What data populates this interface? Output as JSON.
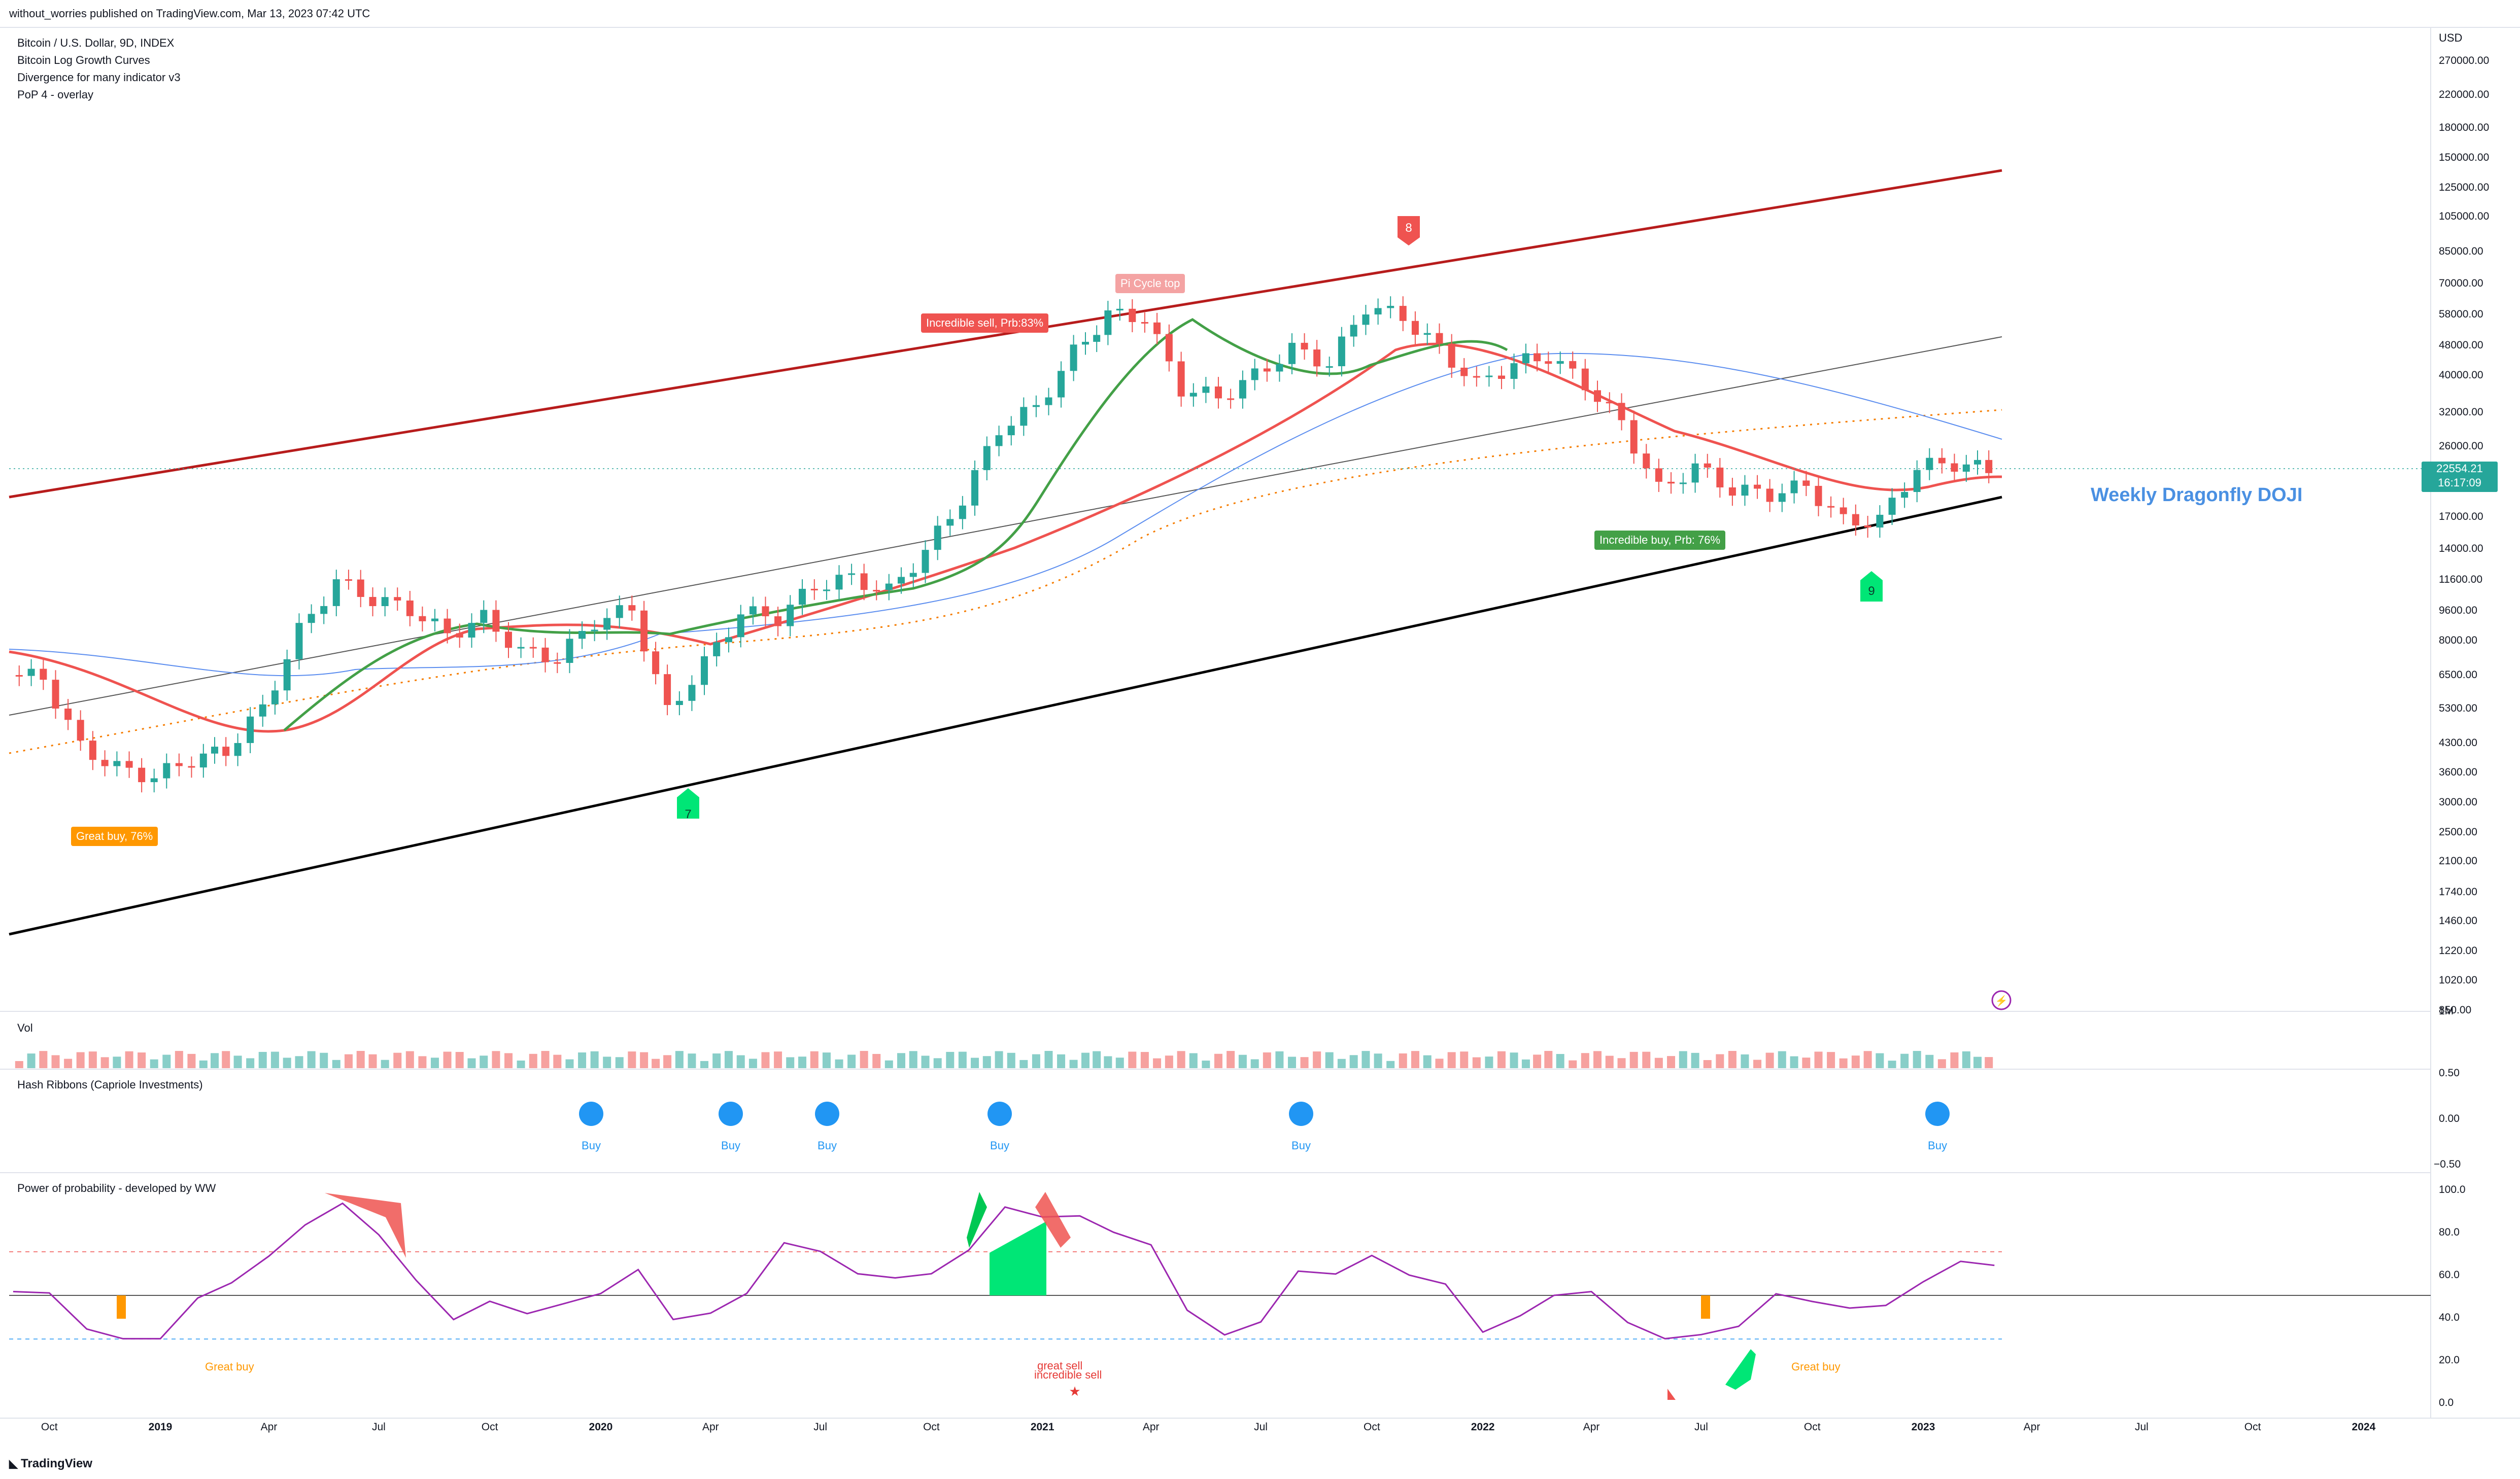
{
  "header": {
    "published": "without_worries published on TradingView.com, Mar 13, 2023 07:42 UTC"
  },
  "legend": {
    "lines": [
      "Bitcoin / U.S. Dollar, 9D, INDEX",
      "Bitcoin Log Growth Curves",
      "Divergence for many indicator v3",
      "PoP 4 - overlay"
    ]
  },
  "currency_label": "USD",
  "current_price": {
    "value": "22554.21",
    "countdown": "16:17:09"
  },
  "annotations": {
    "incredible_sell": "Incredible sell, Prb:83%",
    "pi_cycle_top": "Pi Cycle top",
    "great_buy": "Great buy, 76%",
    "incredible_buy": "Incredible buy, Prb: 76%",
    "dragonfly": "Weekly Dragonfly DOJI",
    "marker_8": "8",
    "marker_7": "7",
    "marker_9": "9"
  },
  "panes": {
    "vol": {
      "title": "Vol",
      "scale": "1M"
    },
    "hash": {
      "title": "Hash Ribbons (Capriole Investments)",
      "ticks": [
        "0.50",
        "0.00",
        "−0.50"
      ],
      "buy_label": "Buy"
    },
    "pop": {
      "title": "Power of probability - developed by WW",
      "ticks": [
        "100.0",
        "80.0",
        "60.0",
        "40.0",
        "20.0",
        "0.0"
      ],
      "great_buy": "Great buy",
      "great_sell": "great sell",
      "incredible_sell": "incredible sell"
    }
  },
  "footer": {
    "brand": "TradingView"
  },
  "colors": {
    "up": "#26a69a",
    "down": "#ef5350",
    "upper_band": "#b71c1c",
    "lower_band": "#000000",
    "ma_green": "#43a047",
    "ma_red": "#ef5350",
    "ma_blue": "#5b8def",
    "buy_dot": "#2196f3"
  },
  "chart_data": [
    {
      "type": "candlestick",
      "title": "Bitcoin / U.S. Dollar, 9D, INDEX",
      "y_scale": "log",
      "ylim": [
        850,
        330000
      ],
      "y_ticks": [
        "270000.00",
        "220000.00",
        "180000.00",
        "150000.00",
        "125000.00",
        "105000.00",
        "85000.00",
        "70000.00",
        "58000.00",
        "48000.00",
        "40000.00",
        "32000.00",
        "26000.00",
        "22000.00",
        "17000.00",
        "14000.00",
        "11600.00",
        "9600.00",
        "8000.00",
        "6500.00",
        "5300.00",
        "4300.00",
        "3600.00",
        "3000.00",
        "2500.00",
        "2100.00",
        "1740.00",
        "1460.00",
        "1220.00",
        "1020.00",
        "850.00"
      ],
      "x_ticks": [
        "Oct",
        "2019",
        "Apr",
        "Jul",
        "Oct",
        "2020",
        "Apr",
        "Jul",
        "Oct",
        "2021",
        "Apr",
        "Jul",
        "Oct",
        "2022",
        "Apr",
        "Jul",
        "Oct",
        "2023",
        "Apr",
        "Jul",
        "Oct",
        "2024"
      ],
      "x_ticks_bold": [
        "2019",
        "2020",
        "2021",
        "2022",
        "2023",
        "2024"
      ],
      "close_series": [
        [
          "2018-09-01",
          6500
        ],
        [
          "2018-10-01",
          6400
        ],
        [
          "2018-11-01",
          4200
        ],
        [
          "2018-12-01",
          3700
        ],
        [
          "2019-01-01",
          3500
        ],
        [
          "2019-02-01",
          3900
        ],
        [
          "2019-03-01",
          4100
        ],
        [
          "2019-04-01",
          5300
        ],
        [
          "2019-05-01",
          8500
        ],
        [
          "2019-06-01",
          11500
        ],
        [
          "2019-07-01",
          10300
        ],
        [
          "2019-08-01",
          9700
        ],
        [
          "2019-09-01",
          8300
        ],
        [
          "2019-10-01",
          9200
        ],
        [
          "2019-11-01",
          7500
        ],
        [
          "2019-12-01",
          7200
        ],
        [
          "2020-01-01",
          9000
        ],
        [
          "2020-02-01",
          9700
        ],
        [
          "2020-03-01",
          5200
        ],
        [
          "2020-04-01",
          7000
        ],
        [
          "2020-05-01",
          9500
        ],
        [
          "2020-06-01",
          9200
        ],
        [
          "2020-07-01",
          11200
        ],
        [
          "2020-08-01",
          11700
        ],
        [
          "2020-09-01",
          10800
        ],
        [
          "2020-10-01",
          13800
        ],
        [
          "2020-11-01",
          19000
        ],
        [
          "2020-12-01",
          29000
        ],
        [
          "2021-01-01",
          33000
        ],
        [
          "2021-02-01",
          46000
        ],
        [
          "2021-03-01",
          58000
        ],
        [
          "2021-04-01",
          57000
        ],
        [
          "2021-05-01",
          37000
        ],
        [
          "2021-06-01",
          35000
        ],
        [
          "2021-07-01",
          40000
        ],
        [
          "2021-08-01",
          47000
        ],
        [
          "2021-09-01",
          43000
        ],
        [
          "2021-10-01",
          61000
        ],
        [
          "2021-11-01",
          57000
        ],
        [
          "2021-12-01",
          47000
        ],
        [
          "2022-01-01",
          38000
        ],
        [
          "2022-02-01",
          43000
        ],
        [
          "2022-03-01",
          45000
        ],
        [
          "2022-04-01",
          38000
        ],
        [
          "2022-05-01",
          30000
        ],
        [
          "2022-06-01",
          20000
        ],
        [
          "2022-07-01",
          23000
        ],
        [
          "2022-08-01",
          20000
        ],
        [
          "2022-09-01",
          19500
        ],
        [
          "2022-10-01",
          20500
        ],
        [
          "2022-11-01",
          16500
        ],
        [
          "2022-12-01",
          16600
        ],
        [
          "2023-01-01",
          23000
        ],
        [
          "2023-02-01",
          23500
        ],
        [
          "2023-03-01",
          22554
        ]
      ],
      "series": [
        {
          "name": "Bitcoin Log Growth Curves (upper)",
          "values": [
            [
              "2018-09-01",
              19000
            ],
            [
              "2023-03-15",
              137000
            ]
          ]
        },
        {
          "name": "Bitcoin Log Growth Curves (lower)",
          "values": [
            [
              "2018-09-01",
              1300
            ],
            [
              "2023-03-15",
              18500
            ]
          ]
        }
      ]
    },
    {
      "type": "bar",
      "title": "Vol"
    },
    {
      "type": "line",
      "title": "Power of probability - developed by WW",
      "ylim": [
        0,
        100
      ]
    }
  ]
}
